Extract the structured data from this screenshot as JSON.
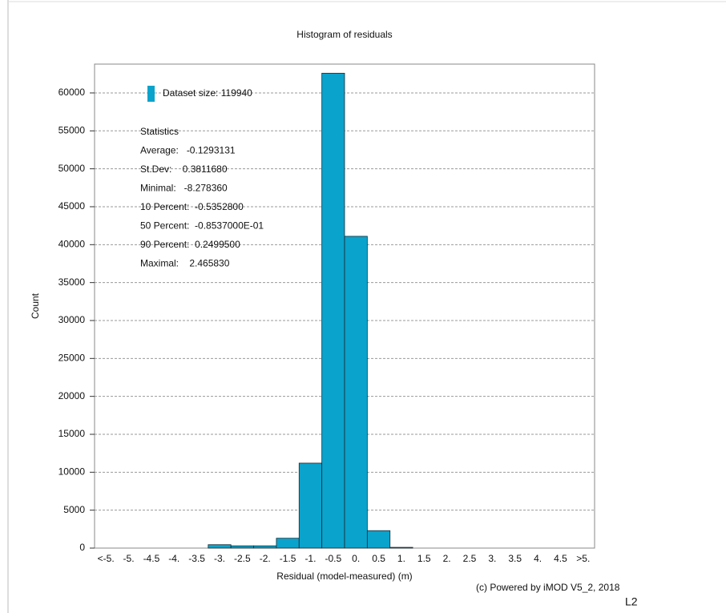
{
  "chart_data": {
    "type": "bar",
    "title": "Histogram of residuals",
    "x_label": "Residual (model-measured) (m)",
    "y_label": "Count",
    "categories": [
      "<-5.",
      "-5.",
      "-4.5",
      "-4.",
      "-3.5",
      "-3.",
      "-2.5",
      "-2.",
      "-1.5",
      "-1.",
      "-0.5",
      "0.",
      "0.5",
      "1.",
      "1.5",
      "2.",
      "2.5",
      "3.",
      "3.5",
      "4.",
      "4.5",
      ">5."
    ],
    "series": [
      {
        "name": "Dataset size: 119940",
        "color": "#0aa3cc",
        "values": [
          0,
          0,
          0,
          0,
          0,
          450,
          300,
          300,
          1300,
          11200,
          62600,
          41100,
          2300,
          100,
          0,
          0,
          0,
          0,
          0,
          0,
          0,
          0
        ]
      }
    ],
    "ylim": [
      0,
      63800
    ],
    "yticks": [
      0,
      5000,
      10000,
      15000,
      20000,
      25000,
      30000,
      35000,
      40000,
      45000,
      50000,
      55000,
      60000
    ],
    "grid": true,
    "legend": "top-left",
    "annotations": [
      "Statistics",
      "Average:   -0.1293131",
      "St.Dev:    0.3811680",
      "Minimal:   -8.278360",
      "10 Percent:  -0.5352800",
      "50 Percent:  -0.8537000E-01",
      "90 Percent:  0.2499500",
      "Maximal:    2.465830"
    ],
    "footer": "(c) Powered by iMOD V5_2, 2018",
    "corner_label": "L2"
  }
}
